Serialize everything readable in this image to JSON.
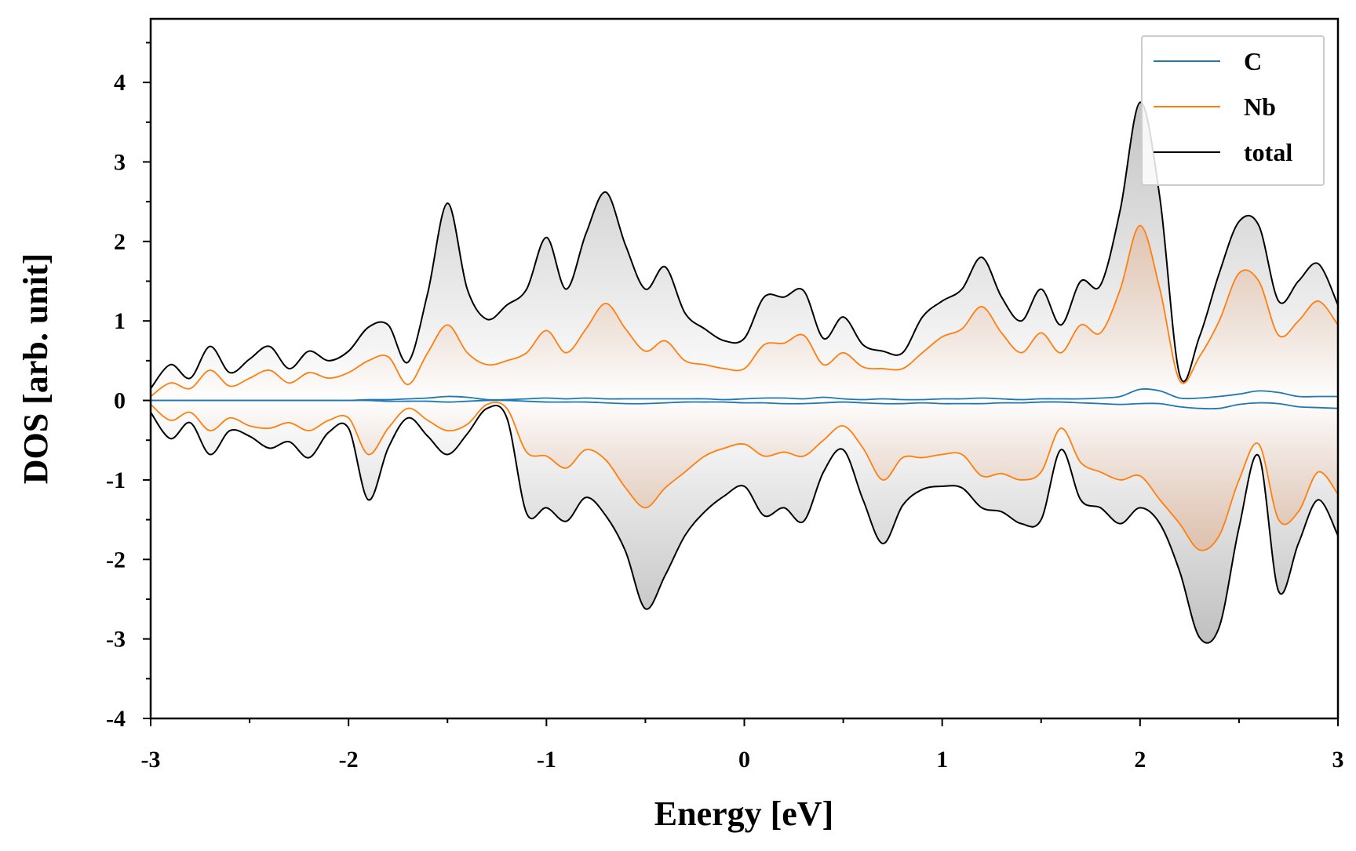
{
  "chart_data": {
    "type": "area",
    "title": "",
    "xlabel": "Energy [eV]",
    "ylabel": "DOS [arb. unit]",
    "xlim": [
      -3,
      3
    ],
    "ylim": [
      -4,
      4.8
    ],
    "x_ticks": [
      -3,
      -2,
      -1,
      0,
      1,
      2,
      3
    ],
    "x_tick_labels": [
      "-3",
      "-2",
      "-1",
      "0",
      "1",
      "2",
      "3"
    ],
    "y_ticks": [
      -4,
      -3,
      -2,
      -1,
      0,
      1,
      2,
      3,
      4
    ],
    "y_tick_labels": [
      "-4",
      "-3",
      "-2",
      "-1",
      "0",
      "1",
      "2",
      "3",
      "4"
    ],
    "grid": false,
    "legend_position": "top-right",
    "x": [
      -3.0,
      -2.9,
      -2.8,
      -2.7,
      -2.6,
      -2.5,
      -2.4,
      -2.3,
      -2.2,
      -2.1,
      -2.0,
      -1.9,
      -1.8,
      -1.7,
      -1.6,
      -1.5,
      -1.4,
      -1.3,
      -1.2,
      -1.1,
      -1.0,
      -0.9,
      -0.8,
      -0.7,
      -0.6,
      -0.5,
      -0.4,
      -0.3,
      -0.2,
      -0.1,
      0.0,
      0.1,
      0.2,
      0.3,
      0.4,
      0.5,
      0.6,
      0.7,
      0.8,
      0.9,
      1.0,
      1.1,
      1.2,
      1.3,
      1.4,
      1.5,
      1.6,
      1.7,
      1.8,
      1.9,
      2.0,
      2.1,
      2.2,
      2.3,
      2.4,
      2.5,
      2.6,
      2.7,
      2.8,
      2.9,
      3.0
    ],
    "series": [
      {
        "name": "C",
        "color": "#1f77b4",
        "spin_up": [
          0.0,
          0.0,
          0.0,
          0.0,
          0.0,
          0.0,
          0.0,
          0.0,
          0.0,
          0.0,
          0.0,
          0.01,
          0.01,
          0.02,
          0.03,
          0.05,
          0.04,
          0.01,
          0.01,
          0.02,
          0.03,
          0.02,
          0.03,
          0.02,
          0.02,
          0.02,
          0.02,
          0.02,
          0.02,
          0.01,
          0.02,
          0.03,
          0.03,
          0.02,
          0.04,
          0.02,
          0.01,
          0.02,
          0.01,
          0.01,
          0.02,
          0.02,
          0.03,
          0.02,
          0.01,
          0.02,
          0.02,
          0.02,
          0.03,
          0.05,
          0.14,
          0.12,
          0.03,
          0.03,
          0.05,
          0.08,
          0.12,
          0.1,
          0.05,
          0.05,
          0.05
        ],
        "spin_down": [
          0.0,
          0.0,
          0.0,
          0.0,
          0.0,
          0.0,
          0.0,
          0.0,
          0.0,
          0.0,
          0.0,
          0.0,
          -0.01,
          -0.01,
          -0.01,
          -0.02,
          -0.01,
          0.0,
          0.0,
          -0.01,
          -0.02,
          -0.02,
          -0.02,
          -0.03,
          -0.04,
          -0.04,
          -0.03,
          -0.02,
          -0.02,
          -0.02,
          -0.03,
          -0.03,
          -0.04,
          -0.04,
          -0.03,
          -0.02,
          -0.03,
          -0.04,
          -0.04,
          -0.03,
          -0.04,
          -0.04,
          -0.04,
          -0.03,
          -0.03,
          -0.02,
          -0.02,
          -0.03,
          -0.04,
          -0.05,
          -0.04,
          -0.04,
          -0.08,
          -0.1,
          -0.1,
          -0.05,
          -0.03,
          -0.04,
          -0.08,
          -0.09,
          -0.1
        ]
      },
      {
        "name": "Nb",
        "color": "#ff7f0e",
        "spin_up": [
          0.05,
          0.22,
          0.15,
          0.38,
          0.18,
          0.28,
          0.38,
          0.22,
          0.35,
          0.28,
          0.35,
          0.5,
          0.55,
          0.2,
          0.6,
          0.95,
          0.6,
          0.45,
          0.5,
          0.6,
          0.88,
          0.6,
          0.9,
          1.22,
          0.9,
          0.62,
          0.75,
          0.5,
          0.45,
          0.4,
          0.4,
          0.7,
          0.72,
          0.82,
          0.45,
          0.6,
          0.42,
          0.4,
          0.4,
          0.6,
          0.8,
          0.9,
          1.18,
          0.85,
          0.6,
          0.85,
          0.6,
          0.95,
          0.85,
          1.4,
          2.2,
          1.4,
          0.25,
          0.55,
          1.0,
          1.6,
          1.5,
          0.82,
          1.0,
          1.25,
          0.95
        ],
        "spin_down": [
          -0.05,
          -0.25,
          -0.15,
          -0.38,
          -0.22,
          -0.32,
          -0.35,
          -0.28,
          -0.38,
          -0.25,
          -0.22,
          -0.68,
          -0.35,
          -0.1,
          -0.25,
          -0.38,
          -0.3,
          -0.05,
          -0.1,
          -0.65,
          -0.7,
          -0.85,
          -0.62,
          -0.75,
          -1.1,
          -1.35,
          -1.1,
          -0.9,
          -0.7,
          -0.6,
          -0.55,
          -0.7,
          -0.65,
          -0.7,
          -0.5,
          -0.32,
          -0.6,
          -1.0,
          -0.72,
          -0.72,
          -0.68,
          -0.68,
          -0.95,
          -0.92,
          -1.0,
          -0.9,
          -0.35,
          -0.78,
          -0.9,
          -1.0,
          -0.95,
          -1.25,
          -1.55,
          -1.88,
          -1.7,
          -1.0,
          -0.55,
          -1.5,
          -1.4,
          -0.9,
          -1.18
        ]
      },
      {
        "name": "total",
        "color": "#000000",
        "spin_up": [
          0.15,
          0.45,
          0.28,
          0.68,
          0.35,
          0.52,
          0.68,
          0.4,
          0.62,
          0.5,
          0.62,
          0.92,
          0.95,
          0.48,
          1.35,
          2.48,
          1.4,
          1.02,
          1.2,
          1.4,
          2.05,
          1.4,
          2.1,
          2.62,
          1.95,
          1.4,
          1.68,
          1.1,
          0.9,
          0.75,
          0.78,
          1.3,
          1.3,
          1.38,
          0.78,
          1.05,
          0.7,
          0.62,
          0.6,
          1.05,
          1.25,
          1.4,
          1.8,
          1.3,
          1.0,
          1.4,
          0.95,
          1.5,
          1.45,
          2.4,
          3.75,
          2.55,
          0.32,
          0.8,
          1.6,
          2.25,
          2.2,
          1.25,
          1.5,
          1.72,
          1.2
        ],
        "spin_down": [
          -0.15,
          -0.48,
          -0.28,
          -0.68,
          -0.38,
          -0.45,
          -0.6,
          -0.52,
          -0.72,
          -0.4,
          -0.35,
          -1.25,
          -0.6,
          -0.22,
          -0.45,
          -0.68,
          -0.42,
          -0.1,
          -0.22,
          -1.42,
          -1.35,
          -1.52,
          -1.22,
          -1.45,
          -1.9,
          -2.62,
          -2.2,
          -1.7,
          -1.4,
          -1.2,
          -1.08,
          -1.45,
          -1.35,
          -1.52,
          -0.9,
          -0.62,
          -1.25,
          -1.8,
          -1.32,
          -1.12,
          -1.08,
          -1.1,
          -1.35,
          -1.4,
          -1.55,
          -1.5,
          -0.62,
          -1.25,
          -1.35,
          -1.55,
          -1.35,
          -1.55,
          -2.15,
          -2.98,
          -2.85,
          -1.6,
          -0.7,
          -2.4,
          -1.8,
          -1.25,
          -1.7
        ]
      }
    ]
  }
}
